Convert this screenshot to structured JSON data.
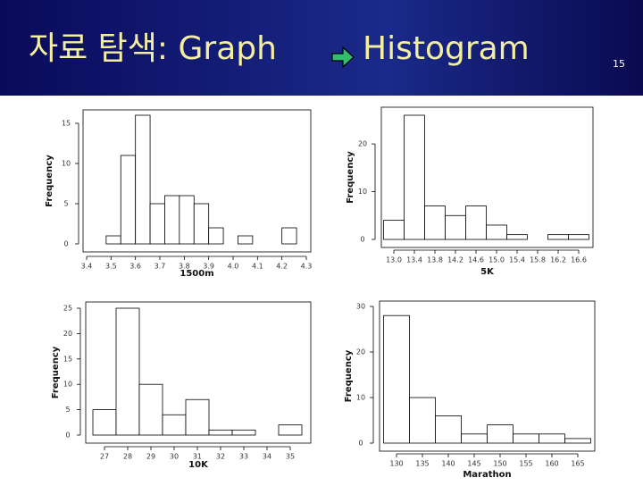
{
  "slide": {
    "title": [
      "자료 탐색: Graph",
      "Histogram"
    ],
    "page_number": "15"
  },
  "chart_data": [
    {
      "type": "histogram",
      "xlabel": "1500m",
      "ylabel": "Frequency",
      "bins": [
        3.48,
        3.54,
        3.6,
        3.66,
        3.72,
        3.78,
        3.84,
        3.9,
        3.96,
        4.02,
        4.08,
        4.14,
        4.2,
        4.26
      ],
      "values": [
        1,
        11,
        16,
        5,
        6,
        6,
        5,
        2,
        0,
        1,
        0,
        0,
        2
      ],
      "xlim": [
        3.4,
        4.3
      ],
      "xticks": [
        3.4,
        3.5,
        3.6,
        3.7,
        3.8,
        3.9,
        {
          "value": 4,
          "label": "4.0"
        },
        4.1,
        4.2,
        4.3
      ],
      "ylim": [
        0,
        16
      ],
      "yticks": [
        0,
        5,
        10,
        15
      ]
    },
    {
      "type": "histogram",
      "xlabel": "5K",
      "ylabel": "Frequency",
      "bins": [
        12.8,
        13.2,
        13.6,
        14.0,
        14.4,
        14.8,
        15.2,
        15.6,
        16.0,
        16.4,
        16.8
      ],
      "values": [
        4,
        26,
        7,
        5,
        7,
        3,
        1,
        0,
        1,
        1
      ],
      "xlim": [
        13,
        16.6
      ],
      "xticks": [
        {
          "value": 13,
          "label": "13.0"
        },
        13.4,
        13.8,
        14.2,
        14.6,
        {
          "value": 15,
          "label": "15.0"
        },
        15.4,
        15.8,
        16.2,
        16.6
      ],
      "ylim": [
        0,
        26
      ],
      "yticks": [
        0,
        10,
        20
      ]
    },
    {
      "type": "histogram",
      "xlabel": "10K",
      "ylabel": "Frequency",
      "bins": [
        26.5,
        27.5,
        28.5,
        29.5,
        30.5,
        31.5,
        32.5,
        33.5,
        34.5,
        35.5
      ],
      "values": [
        5,
        25,
        10,
        4,
        7,
        1,
        1,
        0,
        2
      ],
      "xlim": [
        27,
        35
      ],
      "xticks": [
        27,
        28,
        29,
        30,
        31,
        32,
        33,
        34,
        35
      ],
      "ylim": [
        0,
        25
      ],
      "yticks": [
        0,
        5,
        10,
        15,
        20,
        25
      ]
    },
    {
      "type": "histogram",
      "xlabel": "Marathon",
      "ylabel": "Frequency",
      "bins": [
        127.5,
        132.5,
        137.5,
        142.5,
        147.5,
        152.5,
        157.5,
        162.5,
        167.5
      ],
      "values": [
        28,
        10,
        6,
        2,
        4,
        2,
        2,
        1
      ],
      "xlim": [
        130,
        165
      ],
      "xticks": [
        130,
        135,
        140,
        145,
        150,
        155,
        160,
        165
      ],
      "ylim": [
        0,
        30
      ],
      "yticks": [
        0,
        10,
        20,
        30
      ]
    }
  ]
}
